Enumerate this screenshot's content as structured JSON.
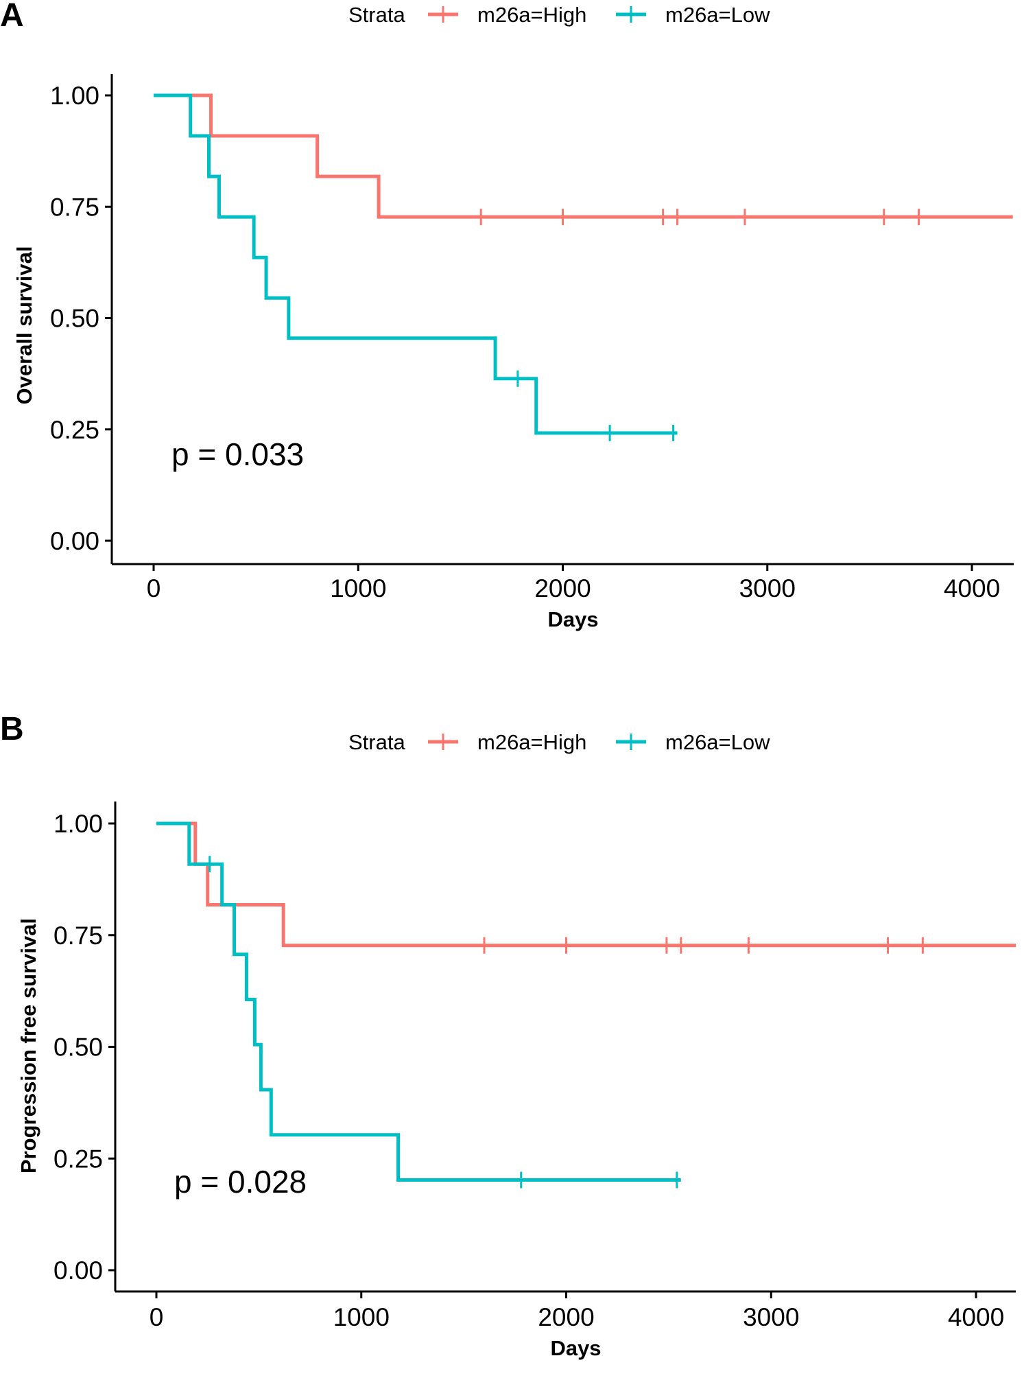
{
  "chart_data": [
    {
      "type": "line",
      "panel_label": "A",
      "legend": {
        "title": "Strata",
        "entries": [
          "m26a=High",
          "m26a=Low"
        ],
        "placement": "top-center"
      },
      "xlabel": "Days",
      "ylabel": "Overall survival",
      "xlim": [
        -100,
        4200
      ],
      "ylim": [
        -0.05,
        1.05
      ],
      "x_ticks": [
        0,
        1000,
        2000,
        3000,
        4000
      ],
      "x_tick_labels": [
        "0",
        "1000",
        "2000",
        "3000",
        "4000"
      ],
      "y_ticks": [
        0,
        0.25,
        0.5,
        0.75,
        1.0
      ],
      "y_tick_labels": [
        "0.00",
        "0.25",
        "0.50",
        "0.75",
        "1.00"
      ],
      "annotation": "p = 0.033",
      "series": [
        {
          "name": "m26a=High",
          "color": "#F8766D",
          "steps": [
            [
              0,
              1.0
            ],
            [
              280,
              0.909
            ],
            [
              800,
              0.818
            ],
            [
              1100,
              0.727
            ],
            [
              4200,
              0.727
            ]
          ],
          "censors": [
            [
              1600,
              0.727
            ],
            [
              2000,
              0.727
            ],
            [
              2490,
              0.727
            ],
            [
              2560,
              0.727
            ],
            [
              2890,
              0.727
            ],
            [
              3570,
              0.727
            ],
            [
              3740,
              0.727
            ]
          ]
        },
        {
          "name": "m26a=Low",
          "color": "#00BFC4",
          "steps": [
            [
              0,
              1.0
            ],
            [
              180,
              0.909
            ],
            [
              270,
              0.818
            ],
            [
              320,
              0.727
            ],
            [
              490,
              0.636
            ],
            [
              550,
              0.545
            ],
            [
              660,
              0.455
            ],
            [
              1670,
              0.364
            ],
            [
              1870,
              0.242
            ],
            [
              2560,
              0.242
            ]
          ],
          "censors": [
            [
              1780,
              0.364
            ],
            [
              2230,
              0.242
            ],
            [
              2540,
              0.242
            ]
          ]
        }
      ]
    },
    {
      "type": "line",
      "panel_label": "B",
      "legend": {
        "title": "Strata",
        "entries": [
          "m26a=High",
          "m26a=Low"
        ],
        "placement": "top-center"
      },
      "xlabel": "Days",
      "ylabel": "Progression free survival",
      "xlim": [
        -100,
        4200
      ],
      "ylim": [
        -0.05,
        1.05
      ],
      "x_ticks": [
        0,
        1000,
        2000,
        3000,
        4000
      ],
      "x_tick_labels": [
        "0",
        "1000",
        "2000",
        "3000",
        "4000"
      ],
      "y_ticks": [
        0,
        0.25,
        0.5,
        0.75,
        1.0
      ],
      "y_tick_labels": [
        "0.00",
        "0.25",
        "0.50",
        "0.75",
        "1.00"
      ],
      "annotation": "p = 0.028",
      "series": [
        {
          "name": "m26a=High",
          "color": "#F8766D",
          "steps": [
            [
              0,
              1.0
            ],
            [
              190,
              0.909
            ],
            [
              250,
              0.818
            ],
            [
              620,
              0.727
            ],
            [
              4200,
              0.727
            ]
          ],
          "censors": [
            [
              1600,
              0.727
            ],
            [
              2000,
              0.727
            ],
            [
              2490,
              0.727
            ],
            [
              2560,
              0.727
            ],
            [
              2890,
              0.727
            ],
            [
              3570,
              0.727
            ],
            [
              3740,
              0.727
            ]
          ]
        },
        {
          "name": "m26a=Low",
          "color": "#00BFC4",
          "steps": [
            [
              0,
              1.0
            ],
            [
              160,
              0.909
            ],
            [
              320,
              0.818
            ],
            [
              380,
              0.707
            ],
            [
              440,
              0.606
            ],
            [
              480,
              0.505
            ],
            [
              510,
              0.404
            ],
            [
              560,
              0.303
            ],
            [
              1180,
              0.202
            ],
            [
              2560,
              0.202
            ]
          ],
          "censors": [
            [
              260,
              0.909
            ],
            [
              1780,
              0.202
            ],
            [
              2540,
              0.202
            ]
          ]
        }
      ]
    }
  ]
}
